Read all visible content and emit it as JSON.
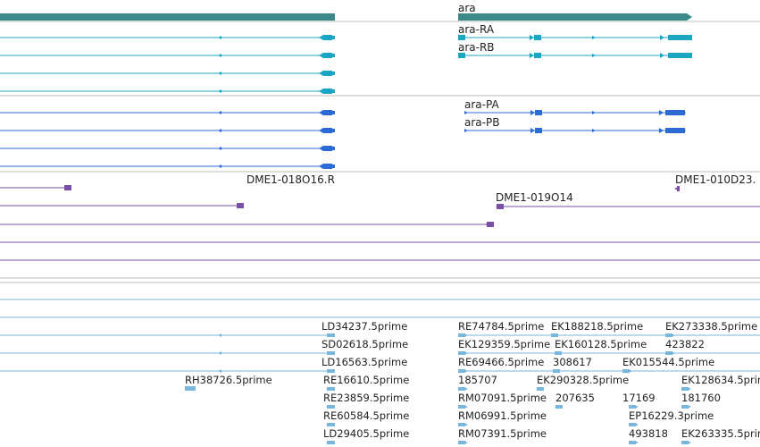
{
  "colors": {
    "gene": "#3a8a8a",
    "transcript_cdna": "#19a6c4",
    "transcript_protein": "#2c6bd6",
    "clone": "#7a4fa6",
    "est": "#79b6dc",
    "separator": "#bbbbbb"
  },
  "gene_track": {
    "gene_name": "ara"
  },
  "cdna_transcripts": {
    "items": [
      "ara-RA",
      "ara-RB"
    ]
  },
  "protein_transcripts": {
    "items": [
      "ara-PA",
      "ara-PB"
    ]
  },
  "clone_track": {
    "items": [
      "DME1-018O16.R",
      "DME1-019O14",
      "DME1-010D23."
    ]
  },
  "est_track": {
    "items": [
      "LD34237.5prime",
      "SD02618.5prime",
      "LD16563.5prime",
      "RH38726.5prime",
      "RE16610.5prime",
      "RE23859.5prime",
      "RE60584.5prime",
      "LD29405.5prime",
      "RE74784.5prime",
      "EK188218.5prime",
      "EK273338.5prime",
      "EK129359.5prime",
      "EK160128.5prime",
      "423822",
      "RE69466.5prime",
      "308617",
      "EK015544.5prime",
      "185707",
      "EK290328.5prime",
      "EK128634.5prime",
      "RM07091.5prime",
      "207635",
      "17169",
      "181760",
      "RM06991.5prime",
      "EP16229.3prime",
      "RM07391.5prime",
      "493818",
      "EK263335.5prime"
    ]
  }
}
